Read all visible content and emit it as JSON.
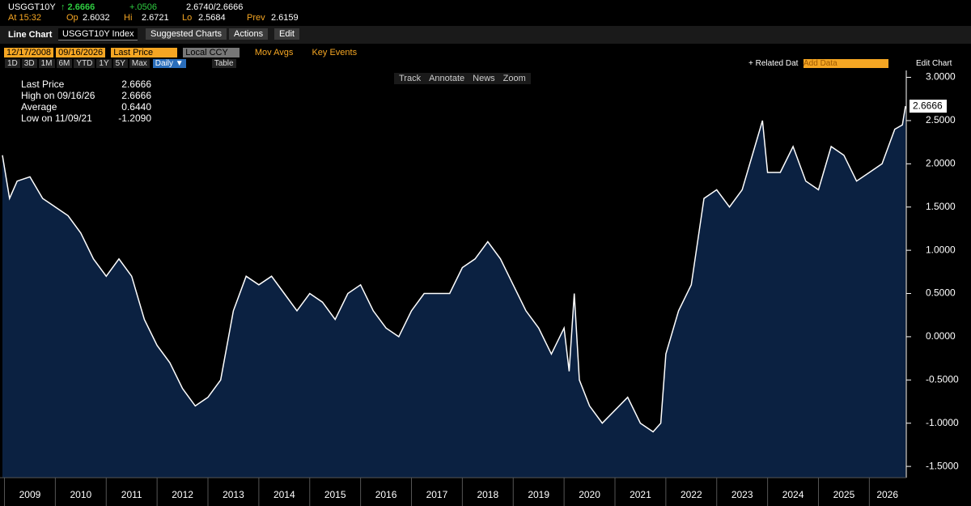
{
  "header": {
    "ticker": "USGGT10Y",
    "last": "↑ 2.6666",
    "change": "+.0506",
    "bidask": "2.6740/2.6666",
    "time": "At 15:32",
    "open_label": "Op",
    "open": "2.6032",
    "high_label": "Hi",
    "high": "2.6721",
    "low_label": "Lo",
    "low": "2.5684",
    "prev_label": "Prev",
    "prev": "2.6159"
  },
  "toolbar": {
    "chart_type": "Line Chart",
    "security": "USGGT10Y Index",
    "menus": [
      "Suggested Charts",
      "Actions",
      "Edit"
    ]
  },
  "controls": {
    "start_date": "12/17/2008",
    "end_date": "09/16/2026",
    "field": "Last Price",
    "currency": "Local CCY",
    "mov_avgs": "Mov Avgs",
    "key_events": "Key Events",
    "periods": [
      "1D",
      "3D",
      "1M",
      "6M",
      "YTD",
      "1Y",
      "5Y",
      "Max"
    ],
    "frequency": "Daily ▼",
    "table": "Table",
    "related": "+ Related Dat",
    "add_data": "Add Data",
    "edit_chart": "Edit Chart"
  },
  "chart_tools": [
    "Track",
    "Annotate",
    "News",
    "Zoom"
  ],
  "legend": [
    [
      "Last Price",
      "2.6666"
    ],
    [
      "High on 09/16/26",
      "2.6666"
    ],
    [
      "Average",
      "0.6440"
    ],
    [
      "Low on 11/09/21",
      "-1.2090"
    ]
  ],
  "chart_data": {
    "type": "line",
    "color": "#ffffff",
    "fill": "#0b2141",
    "x": [
      2008.96,
      2009.1,
      2009.25,
      2009.5,
      2009.75,
      2010.0,
      2010.25,
      2010.5,
      2010.75,
      2011.0,
      2011.25,
      2011.5,
      2011.75,
      2012.0,
      2012.25,
      2012.5,
      2012.75,
      2013.0,
      2013.25,
      2013.5,
      2013.75,
      2014.0,
      2014.25,
      2014.5,
      2014.75,
      2015.0,
      2015.25,
      2015.5,
      2015.75,
      2016.0,
      2016.25,
      2016.5,
      2016.75,
      2017.0,
      2017.25,
      2017.5,
      2017.75,
      2018.0,
      2018.25,
      2018.5,
      2018.75,
      2019.0,
      2019.25,
      2019.5,
      2019.75,
      2020.0,
      2020.1,
      2020.2,
      2020.3,
      2020.5,
      2020.75,
      2021.0,
      2021.25,
      2021.5,
      2021.75,
      2021.9,
      2022.0,
      2022.25,
      2022.5,
      2022.75,
      2023.0,
      2023.25,
      2023.5,
      2023.75,
      2023.9,
      2024.0,
      2024.25,
      2024.5,
      2024.75,
      2025.0,
      2025.25,
      2025.5,
      2025.75,
      2026.0,
      2026.25,
      2026.5,
      2026.65,
      2026.71
    ],
    "series": [
      {
        "name": "Last Price",
        "values": [
          2.1,
          1.6,
          1.8,
          1.85,
          1.6,
          1.5,
          1.4,
          1.2,
          0.9,
          0.7,
          0.9,
          0.7,
          0.2,
          -0.1,
          -0.3,
          -0.6,
          -0.8,
          -0.7,
          -0.5,
          0.3,
          0.7,
          0.6,
          0.7,
          0.5,
          0.3,
          0.5,
          0.4,
          0.2,
          0.5,
          0.6,
          0.3,
          0.1,
          0.0,
          0.3,
          0.5,
          0.5,
          0.5,
          0.8,
          0.9,
          1.1,
          0.9,
          0.6,
          0.3,
          0.1,
          -0.2,
          0.1,
          -0.4,
          0.5,
          -0.5,
          -0.8,
          -1.0,
          -0.85,
          -0.7,
          -1.0,
          -1.1,
          -1.0,
          -0.2,
          0.3,
          0.6,
          1.6,
          1.7,
          1.5,
          1.7,
          2.2,
          2.5,
          1.9,
          1.9,
          2.2,
          1.8,
          1.7,
          2.2,
          2.1,
          1.8,
          1.9,
          2.0,
          2.4,
          2.45,
          2.6666
        ]
      }
    ],
    "xlim": [
      2008.96,
      2026.71
    ],
    "xticks": [
      2009,
      2010,
      2011,
      2012,
      2013,
      2014,
      2015,
      2016,
      2017,
      2018,
      2019,
      2020,
      2021,
      2022,
      2023,
      2024,
      2025,
      2026
    ],
    "ylim": [
      -1.63,
      3.08
    ],
    "yticks": [
      {
        "value": 3,
        "label": "3.0000"
      },
      {
        "value": 2.5,
        "label": "2.5000"
      },
      {
        "value": 2,
        "label": "2.0000"
      },
      {
        "value": 1.5,
        "label": "1.5000"
      },
      {
        "value": 1,
        "label": "1.0000"
      },
      {
        "value": 0.5,
        "label": "0.5000"
      },
      {
        "value": 0,
        "label": "0.0000"
      },
      {
        "value": -0.5,
        "label": "-0.5000"
      },
      {
        "value": -1,
        "label": "-1.0000"
      },
      {
        "value": -1.5,
        "label": "-1.5000"
      }
    ]
  }
}
